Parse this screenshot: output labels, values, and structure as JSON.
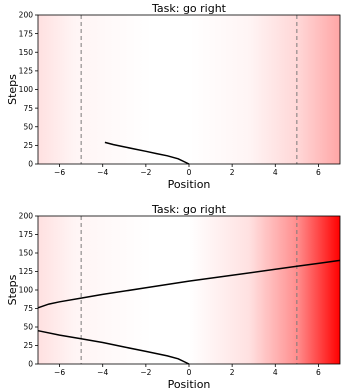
{
  "chart_data": [
    {
      "type": "line",
      "title": "Task: go right",
      "xlabel": "Position",
      "ylabel": "Steps",
      "xlim": [
        -7,
        7
      ],
      "ylim": [
        0,
        200
      ],
      "xticks": [
        -6,
        -4,
        -2,
        0,
        2,
        4,
        6
      ],
      "xtick_labels": [
        "−6",
        "−4",
        "−2",
        "0",
        "2",
        "4",
        "6"
      ],
      "yticks": [
        0,
        25,
        50,
        75,
        100,
        125,
        150,
        175,
        200
      ],
      "ytick_labels": [
        "0",
        "25",
        "50",
        "75",
        "100",
        "125",
        "150",
        "175",
        "200"
      ],
      "vlines": [
        -5,
        5
      ],
      "background": {
        "type": "position-gradient",
        "color": "#ff0000",
        "max_intensity_left": 0.12,
        "max_intensity_right": 0.35
      },
      "series": [
        {
          "color": "#000000",
          "x": [
            0,
            -0.5,
            -1,
            -1.5,
            -2,
            -2.5,
            -3,
            -3.5,
            -3.9
          ],
          "y": [
            0,
            7,
            11,
            14,
            17,
            20,
            23,
            26,
            29
          ]
        }
      ]
    },
    {
      "type": "line",
      "title": "Task: go right",
      "xlabel": "Position",
      "ylabel": "Steps",
      "xlim": [
        -7,
        7
      ],
      "ylim": [
        0,
        200
      ],
      "xticks": [
        -6,
        -4,
        -2,
        0,
        2,
        4,
        6
      ],
      "xtick_labels": [
        "−6",
        "−4",
        "−2",
        "0",
        "2",
        "4",
        "6"
      ],
      "yticks": [
        0,
        25,
        50,
        75,
        100,
        125,
        150,
        175,
        200
      ],
      "ytick_labels": [
        "0",
        "25",
        "50",
        "75",
        "100",
        "125",
        "150",
        "175",
        "200"
      ],
      "vlines": [
        -5,
        5
      ],
      "background": {
        "type": "position-gradient",
        "color": "#ff0000",
        "max_intensity_left": 0.12,
        "max_intensity_right": 1.0
      },
      "series": [
        {
          "color": "#000000",
          "x": [
            0,
            -0.5,
            -1,
            -2,
            -3,
            -4,
            -5,
            -6,
            -7
          ],
          "y": [
            0,
            7,
            11,
            17,
            23,
            29,
            34,
            39,
            45
          ]
        },
        {
          "color": "#000000",
          "x": [
            -7,
            -6.5,
            -6,
            -5,
            -4,
            -2,
            0,
            2,
            4,
            5,
            6,
            7
          ],
          "y": [
            76,
            81,
            84,
            89,
            94,
            103,
            112,
            120,
            128,
            132,
            136,
            140
          ]
        }
      ]
    }
  ]
}
